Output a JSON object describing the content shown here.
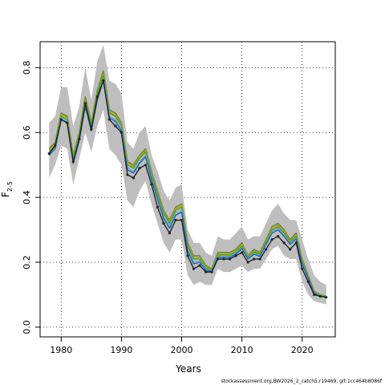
{
  "chart_data": {
    "type": "line",
    "title": "",
    "xlabel": "Years",
    "ylabel": {
      "main": "F",
      "sub": "2-5"
    },
    "xlim": [
      1976.5,
      2025.5
    ],
    "ylim": [
      -0.03,
      0.88
    ],
    "grid": true,
    "x_ticks": [
      1980,
      1990,
      2000,
      2010,
      2020
    ],
    "x_tick_labels": [
      "1980",
      "1990",
      "2000",
      "2010",
      "2020"
    ],
    "y_ticks": [
      0.0,
      0.2,
      0.4,
      0.6,
      0.8
    ],
    "y_tick_labels": [
      "0.0",
      "0.2",
      "0.4",
      "0.6",
      "0.8"
    ],
    "footer": "stockassessment.org,BW2026_2_catch5,r19469, git:1cc464b8086f",
    "band": {
      "color": "#bebebe",
      "x": [
        1978,
        1979,
        1980,
        1981,
        1982,
        1983,
        1984,
        1985,
        1986,
        1987,
        1988,
        1989,
        1990,
        1991,
        1992,
        1993,
        1994,
        1995,
        1996,
        1997,
        1998,
        1999,
        2000,
        2001,
        2002,
        2003,
        2004,
        2005,
        2006,
        2007,
        2008,
        2009,
        2010,
        2011,
        2012,
        2013,
        2014,
        2015,
        2016,
        2017,
        2018,
        2019,
        2020,
        2021,
        2022,
        2023,
        2024
      ],
      "upper": [
        0.63,
        0.65,
        0.74,
        0.74,
        0.62,
        0.68,
        0.8,
        0.7,
        0.82,
        0.87,
        0.76,
        0.75,
        0.72,
        0.57,
        0.55,
        0.6,
        0.62,
        0.53,
        0.48,
        0.42,
        0.39,
        0.43,
        0.44,
        0.3,
        0.26,
        0.26,
        0.23,
        0.22,
        0.28,
        0.27,
        0.27,
        0.29,
        0.31,
        0.27,
        0.28,
        0.28,
        0.32,
        0.36,
        0.38,
        0.35,
        0.33,
        0.33,
        0.27,
        0.21,
        0.16,
        0.14,
        0.13
      ],
      "lower": [
        0.46,
        0.5,
        0.56,
        0.55,
        0.44,
        0.52,
        0.6,
        0.54,
        0.62,
        0.67,
        0.55,
        0.53,
        0.5,
        0.39,
        0.37,
        0.42,
        0.45,
        0.38,
        0.32,
        0.26,
        0.23,
        0.27,
        0.27,
        0.16,
        0.13,
        0.14,
        0.13,
        0.13,
        0.18,
        0.17,
        0.17,
        0.18,
        0.19,
        0.17,
        0.18,
        0.18,
        0.21,
        0.24,
        0.25,
        0.22,
        0.21,
        0.21,
        0.14,
        0.1,
        0.08,
        0.075,
        0.07
      ]
    },
    "series": [
      {
        "color": "#6b8e23",
        "width": 1.6,
        "values": [
          0.55,
          0.57,
          0.66,
          0.65,
          0.53,
          0.6,
          0.71,
          0.63,
          0.73,
          0.79,
          0.67,
          0.66,
          0.63,
          0.51,
          0.5,
          0.53,
          0.55,
          0.48,
          0.42,
          0.36,
          0.33,
          0.37,
          0.38,
          0.26,
          0.22,
          0.22,
          0.19,
          0.18,
          0.23,
          0.23,
          0.23,
          0.24,
          0.26,
          0.22,
          0.24,
          0.23,
          0.27,
          0.31,
          0.32,
          0.3,
          0.27,
          0.29,
          0.21,
          0.16,
          0.11,
          0.1,
          0.095
        ]
      },
      {
        "color": "#c8a000",
        "width": 1.4,
        "values": [
          0.545,
          0.565,
          0.655,
          0.645,
          0.525,
          0.595,
          0.7,
          0.625,
          0.72,
          0.78,
          0.665,
          0.655,
          0.625,
          0.505,
          0.495,
          0.525,
          0.545,
          0.475,
          0.415,
          0.355,
          0.325,
          0.365,
          0.375,
          0.255,
          0.215,
          0.215,
          0.185,
          0.178,
          0.225,
          0.225,
          0.225,
          0.235,
          0.255,
          0.218,
          0.235,
          0.226,
          0.265,
          0.305,
          0.315,
          0.295,
          0.265,
          0.285,
          0.205,
          0.157,
          0.108,
          0.098,
          0.094
        ]
      },
      {
        "color": "#2ca25f",
        "width": 1.4,
        "values": [
          0.54,
          0.56,
          0.65,
          0.64,
          0.52,
          0.59,
          0.695,
          0.62,
          0.715,
          0.775,
          0.66,
          0.65,
          0.62,
          0.5,
          0.49,
          0.52,
          0.54,
          0.47,
          0.41,
          0.35,
          0.32,
          0.36,
          0.37,
          0.25,
          0.21,
          0.21,
          0.182,
          0.176,
          0.222,
          0.222,
          0.222,
          0.232,
          0.25,
          0.215,
          0.232,
          0.224,
          0.262,
          0.3,
          0.31,
          0.29,
          0.262,
          0.28,
          0.202,
          0.155,
          0.107,
          0.097,
          0.094
        ]
      },
      {
        "color": "#6baed6",
        "width": 1.4,
        "values": [
          0.535,
          0.555,
          0.645,
          0.635,
          0.51,
          0.58,
          0.685,
          0.61,
          0.705,
          0.765,
          0.65,
          0.64,
          0.61,
          0.49,
          0.48,
          0.51,
          0.53,
          0.46,
          0.4,
          0.34,
          0.31,
          0.35,
          0.36,
          0.24,
          0.2,
          0.205,
          0.178,
          0.174,
          0.218,
          0.218,
          0.218,
          0.228,
          0.245,
          0.212,
          0.228,
          0.22,
          0.258,
          0.295,
          0.305,
          0.285,
          0.258,
          0.275,
          0.198,
          0.152,
          0.105,
          0.096,
          0.093
        ]
      },
      {
        "color": "#2b5fa8",
        "width": 1.4,
        "values": [
          0.53,
          0.55,
          0.64,
          0.63,
          0.505,
          0.575,
          0.68,
          0.605,
          0.7,
          0.76,
          0.645,
          0.635,
          0.605,
          0.485,
          0.475,
          0.505,
          0.525,
          0.455,
          0.395,
          0.335,
          0.305,
          0.345,
          0.355,
          0.235,
          0.195,
          0.2,
          0.175,
          0.172,
          0.215,
          0.215,
          0.215,
          0.225,
          0.242,
          0.21,
          0.225,
          0.218,
          0.255,
          0.29,
          0.3,
          0.28,
          0.255,
          0.272,
          0.195,
          0.15,
          0.104,
          0.095,
          0.093
        ]
      },
      {
        "color": "#222222",
        "width": 1.4,
        "points": true,
        "values": [
          0.535,
          0.56,
          0.64,
          0.63,
          0.51,
          0.58,
          0.69,
          0.61,
          0.71,
          0.76,
          0.64,
          0.62,
          0.6,
          0.47,
          0.46,
          0.49,
          0.5,
          0.44,
          0.37,
          0.32,
          0.29,
          0.33,
          0.33,
          0.22,
          0.18,
          0.19,
          0.17,
          0.17,
          0.21,
          0.21,
          0.21,
          0.22,
          0.23,
          0.2,
          0.21,
          0.21,
          0.24,
          0.27,
          0.28,
          0.26,
          0.24,
          0.26,
          0.18,
          0.14,
          0.1,
          0.095,
          0.092
        ]
      }
    ]
  }
}
